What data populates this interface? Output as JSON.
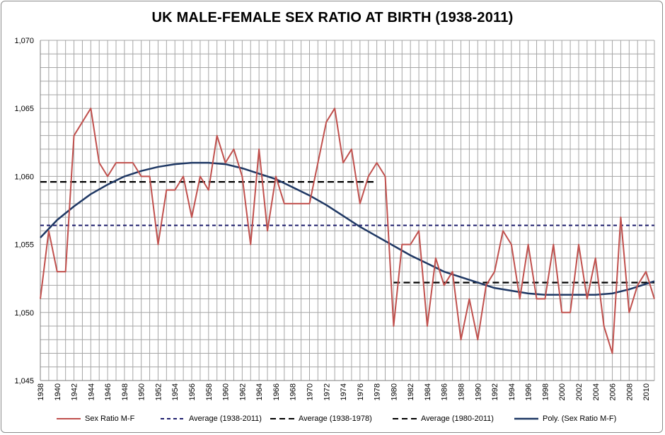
{
  "chart_data": {
    "type": "line",
    "title": "UK MALE-FEMALE SEX RATIO AT BIRTH (1938-2011)",
    "xlabel": "",
    "ylabel": "",
    "ylim": [
      1.045,
      1.07
    ],
    "xlim": [
      1938,
      2011
    ],
    "yticks": [
      "1,045",
      "1,050",
      "1,055",
      "1,060",
      "1,065",
      "1,070"
    ],
    "xticks": [
      "1938",
      "1940",
      "1942",
      "1944",
      "1946",
      "1948",
      "1950",
      "1952",
      "1954",
      "1956",
      "1958",
      "1960",
      "1962",
      "1964",
      "1966",
      "1968",
      "1970",
      "1972",
      "1974",
      "1976",
      "1978",
      "1980",
      "1982",
      "1984",
      "1986",
      "1988",
      "1990",
      "1992",
      "1994",
      "1996",
      "1998",
      "2000",
      "2002",
      "2004",
      "2006",
      "2008",
      "2010"
    ],
    "grid": true,
    "legend_position": "bottom",
    "series": [
      {
        "name": "Sex Ratio M-F",
        "color": "#c0504d",
        "style": "solid",
        "x": [
          1938,
          1939,
          1940,
          1941,
          1942,
          1943,
          1944,
          1945,
          1946,
          1947,
          1948,
          1949,
          1950,
          1951,
          1952,
          1953,
          1954,
          1955,
          1956,
          1957,
          1958,
          1959,
          1960,
          1961,
          1962,
          1963,
          1964,
          1965,
          1966,
          1967,
          1968,
          1969,
          1970,
          1971,
          1972,
          1973,
          1974,
          1975,
          1976,
          1977,
          1978,
          1979,
          1980,
          1981,
          1982,
          1983,
          1984,
          1985,
          1986,
          1987,
          1988,
          1989,
          1990,
          1991,
          1992,
          1993,
          1994,
          1995,
          1996,
          1997,
          1998,
          1999,
          2000,
          2001,
          2002,
          2003,
          2004,
          2005,
          2006,
          2007,
          2008,
          2009,
          2010,
          2011
        ],
        "values": [
          1.051,
          1.056,
          1.053,
          1.053,
          1.063,
          1.064,
          1.065,
          1.061,
          1.06,
          1.061,
          1.061,
          1.061,
          1.06,
          1.06,
          1.055,
          1.059,
          1.059,
          1.06,
          1.057,
          1.06,
          1.059,
          1.063,
          1.061,
          1.062,
          1.06,
          1.055,
          1.062,
          1.056,
          1.06,
          1.058,
          1.058,
          1.058,
          1.058,
          1.061,
          1.064,
          1.065,
          1.061,
          1.062,
          1.058,
          1.06,
          1.061,
          1.06,
          1.049,
          1.055,
          1.055,
          1.056,
          1.049,
          1.054,
          1.052,
          1.053,
          1.048,
          1.051,
          1.048,
          1.052,
          1.053,
          1.056,
          1.055,
          1.051,
          1.055,
          1.051,
          1.051,
          1.055,
          1.05,
          1.05,
          1.055,
          1.051,
          1.054,
          1.049,
          1.047,
          1.057,
          1.05,
          1.052,
          1.053,
          1.051
        ]
      },
      {
        "name": "Average (1938-2011)",
        "color": "#1f1f6e",
        "style": "dashed",
        "x": [
          1938,
          2011
        ],
        "values": [
          1.0564,
          1.0564
        ]
      },
      {
        "name": "Average (1938-1978)",
        "color": "#000000",
        "style": "dashed",
        "x": [
          1938,
          1978
        ],
        "values": [
          1.0596,
          1.0596
        ]
      },
      {
        "name": "Average (1980-2011)",
        "color": "#000000",
        "style": "dashed",
        "x": [
          1980,
          2011
        ],
        "values": [
          1.0522,
          1.0522
        ]
      },
      {
        "name": "Poly. (Sex Ratio M-F)",
        "color": "#1f3864",
        "style": "solid",
        "x": [
          1938,
          1940,
          1942,
          1944,
          1946,
          1948,
          1950,
          1952,
          1954,
          1956,
          1958,
          1960,
          1962,
          1964,
          1966,
          1968,
          1970,
          1972,
          1974,
          1976,
          1978,
          1980,
          1982,
          1984,
          1986,
          1988,
          1990,
          1992,
          1994,
          1996,
          1998,
          2000,
          2002,
          2004,
          2006,
          2008,
          2010,
          2011
        ],
        "values": [
          1.0555,
          1.0568,
          1.0578,
          1.0587,
          1.0594,
          1.06,
          1.0604,
          1.0607,
          1.0609,
          1.061,
          1.061,
          1.0609,
          1.0606,
          1.0602,
          1.0598,
          1.0592,
          1.0586,
          1.0579,
          1.0571,
          1.0563,
          1.0556,
          1.0549,
          1.0542,
          1.0536,
          1.053,
          1.0526,
          1.0522,
          1.0518,
          1.0516,
          1.0514,
          1.0513,
          1.0513,
          1.0513,
          1.0513,
          1.0514,
          1.0517,
          1.0521,
          1.0523
        ]
      }
    ]
  }
}
